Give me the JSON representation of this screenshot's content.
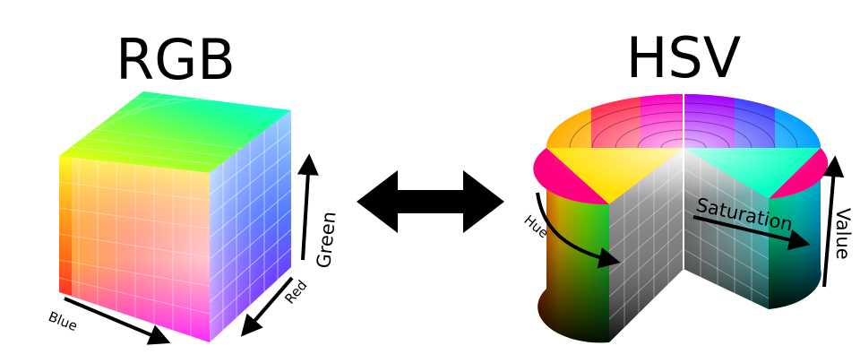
{
  "rgb": {
    "title": "RGB",
    "axes": {
      "red": "Red",
      "green": "Green",
      "blue": "Blue"
    }
  },
  "hsv": {
    "title": "HSV",
    "axes": {
      "hue": "Hue",
      "saturation": "Saturation",
      "value": "Value"
    }
  },
  "colors": {
    "arrow": "#000000",
    "red": "#ff0000",
    "yellow": "#ffff00",
    "green": "#00ff00",
    "cyan": "#00ffff",
    "blue": "#0000ff",
    "magenta": "#ff00ff",
    "white": "#ffffff",
    "black": "#000000"
  }
}
